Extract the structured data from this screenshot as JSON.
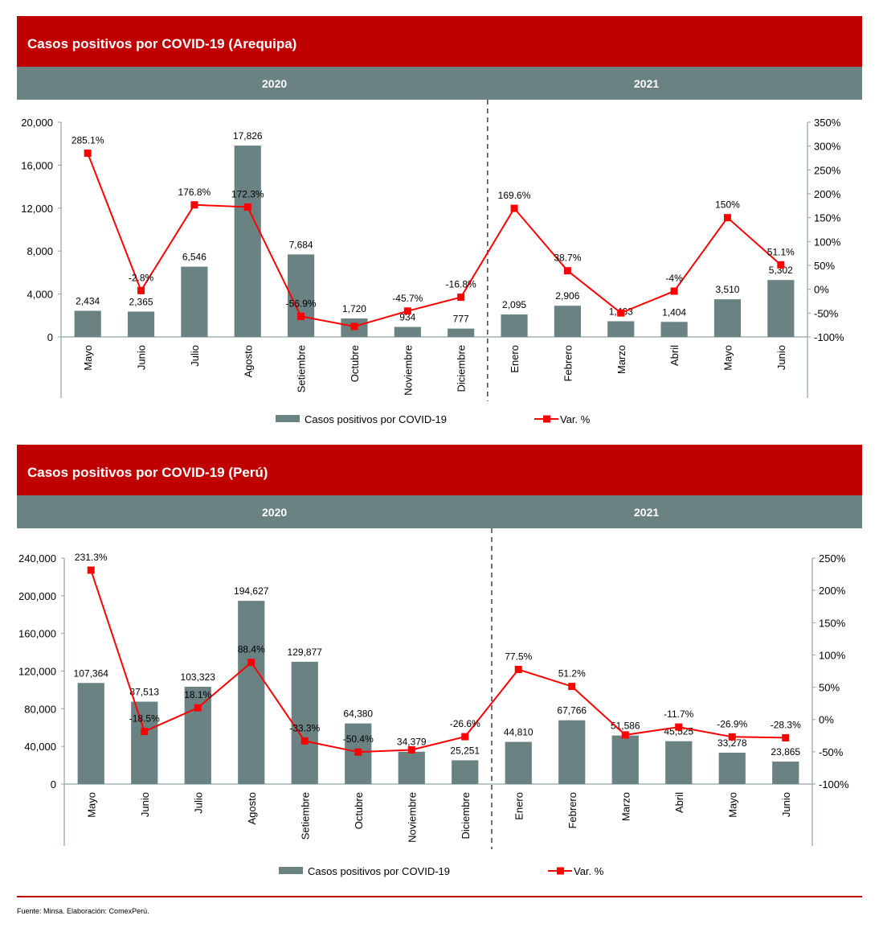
{
  "colors": {
    "bar": "#6b8283",
    "line": "#ff0000",
    "header": "#c00000",
    "subheader": "#6b8283"
  },
  "chart_data": [
    {
      "type": "bar+line",
      "title": "Casos positivos por COVID-19 (Arequipa)",
      "years": [
        "2020",
        "2021"
      ],
      "categories": [
        "Mayo",
        "Junio",
        "Julio",
        "Agosto",
        "Setiembre",
        "Octubre",
        "Noviembre",
        "Diciembre",
        "Enero",
        "Febrero",
        "Marzo",
        "Abril",
        "Mayo",
        "Junio"
      ],
      "bar_values": [
        2434,
        2365,
        6546,
        17826,
        7684,
        1720,
        934,
        777,
        2095,
        2906,
        1463,
        1404,
        3510,
        5302
      ],
      "bar_labels": [
        "2,434",
        "2,365",
        "6,546",
        "17,826",
        "7,684",
        "1,720",
        "934",
        "777",
        "2,095",
        "2,906",
        "1,463",
        "1,404",
        "3,510",
        "5,302"
      ],
      "line_values": [
        285.1,
        -2.8,
        176.8,
        172.3,
        -56.9,
        -78,
        -45.7,
        -16.8,
        169.6,
        38.7,
        -49.7,
        -4,
        150,
        51.1
      ],
      "line_labels": [
        "285.1%",
        "-2.8%",
        "176.8%",
        "172.3%",
        "-56.9%",
        "",
        "-45.7%",
        "-16.8%",
        "169.6%",
        "38.7%",
        "",
        "-4%",
        "150%",
        "51.1%"
      ],
      "ylim": [
        0,
        20000
      ],
      "yticks": [
        "0",
        "4,000",
        "8,000",
        "12,000",
        "16,000",
        "20,000"
      ],
      "y2lim": [
        -100,
        350
      ],
      "y2ticks": [
        "-100%",
        "-50%",
        "0%",
        "50%",
        "100%",
        "150%",
        "200%",
        "250%",
        "300%",
        "350%"
      ],
      "legend": {
        "bar": "Casos positivos por COVID-19",
        "line": "Var. %"
      }
    },
    {
      "type": "bar+line",
      "title": "Casos positivos por COVID-19 (Perú)",
      "years": [
        "2020",
        "2021"
      ],
      "categories": [
        "Mayo",
        "Junio",
        "Julio",
        "Agosto",
        "Setiembre",
        "Octubre",
        "Noviembre",
        "Diciembre",
        "Enero",
        "Febrero",
        "Marzo",
        "Abril",
        "Mayo",
        "Junio"
      ],
      "bar_values": [
        107364,
        87513,
        103323,
        194627,
        129877,
        64380,
        34379,
        25251,
        44810,
        67766,
        51586,
        45525,
        33278,
        23865
      ],
      "bar_labels": [
        "107,364",
        "87,513",
        "103,323",
        "194,627",
        "129,877",
        "64,380",
        "34,379",
        "25,251",
        "44,810",
        "67,766",
        "51,586",
        "45,525",
        "33,278",
        "23,865"
      ],
      "line_values": [
        231.3,
        -18.5,
        18.1,
        88.4,
        -33.3,
        -50.4,
        -47,
        -26.6,
        77.5,
        51.2,
        -23.9,
        -11.7,
        -26.9,
        -28.3
      ],
      "line_labels": [
        "231.3%",
        "-18.5%",
        "18.1%",
        "88.4%",
        "-33.3%",
        "-50.4%",
        "",
        "-26.6%",
        "77.5%",
        "51.2%",
        "",
        "-11.7%",
        "-26.9%",
        "-28.3%"
      ],
      "ylim": [
        0,
        240000
      ],
      "yticks": [
        "0",
        "40,000",
        "80,000",
        "120,000",
        "160,000",
        "200,000",
        "240,000"
      ],
      "y2lim": [
        -100,
        250
      ],
      "y2ticks": [
        "-100%",
        "-50%",
        "0%",
        "50%",
        "100%",
        "150%",
        "200%",
        "250%"
      ],
      "legend": {
        "bar": "Casos positivos por COVID-19",
        "line": "Var. %"
      }
    }
  ],
  "footer": "Fuente: Minsa. Elaboración: ComexPerú."
}
